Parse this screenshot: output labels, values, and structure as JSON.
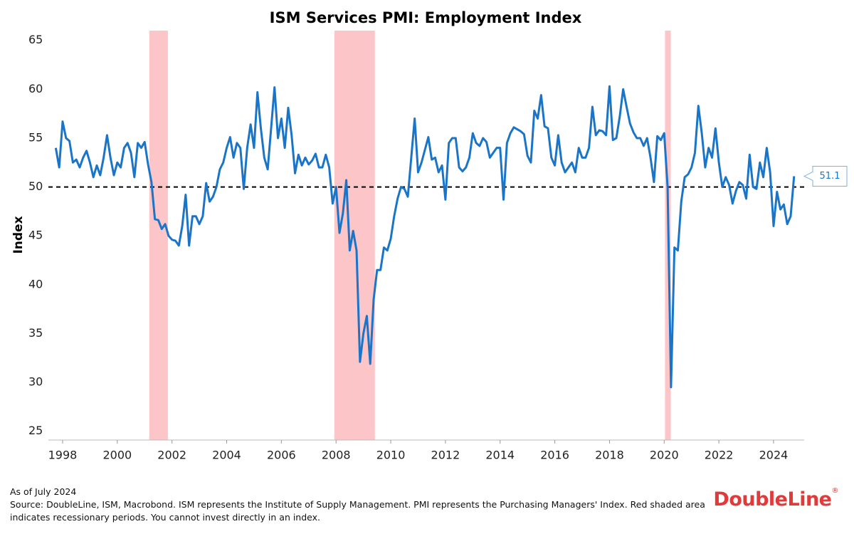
{
  "chart_data": {
    "type": "line",
    "title": "ISM Services PMI: Employment Index",
    "y_label": "Index",
    "color": "#1a75c9",
    "xlim": [
      1997.48,
      2025.12
    ],
    "ylim": [
      24.1,
      66
    ],
    "xticks": [
      1998,
      2000,
      2002,
      2004,
      2006,
      2008,
      2010,
      2012,
      2014,
      2016,
      2018,
      2020,
      2022,
      2024
    ],
    "yticks": [
      25,
      30,
      35,
      40,
      45,
      50,
      55,
      60,
      65
    ],
    "ref_line": 50,
    "recession_color": "#fcc5c8",
    "recessions": [
      [
        2001.17,
        2001.85
      ],
      [
        2007.94,
        2009.42
      ],
      [
        2020.03,
        2020.24
      ]
    ],
    "x": [
      1997.75,
      1997.875,
      1998,
      1998.125,
      1998.25,
      1998.375,
      1998.5,
      1998.625,
      1998.75,
      1998.875,
      1999,
      1999.125,
      1999.25,
      1999.375,
      1999.5,
      1999.625,
      1999.75,
      1999.875,
      2000,
      2000.125,
      2000.25,
      2000.375,
      2000.5,
      2000.625,
      2000.75,
      2000.875,
      2001,
      2001.125,
      2001.25,
      2001.375,
      2001.5,
      2001.625,
      2001.75,
      2001.875,
      2002,
      2002.125,
      2002.25,
      2002.375,
      2002.5,
      2002.625,
      2002.75,
      2002.875,
      2003,
      2003.125,
      2003.25,
      2003.375,
      2003.5,
      2003.625,
      2003.75,
      2003.875,
      2004,
      2004.125,
      2004.25,
      2004.375,
      2004.5,
      2004.625,
      2004.75,
      2004.875,
      2005,
      2005.125,
      2005.25,
      2005.375,
      2005.5,
      2005.625,
      2005.75,
      2005.875,
      2006,
      2006.125,
      2006.25,
      2006.375,
      2006.5,
      2006.625,
      2006.75,
      2006.875,
      2007,
      2007.125,
      2007.25,
      2007.375,
      2007.5,
      2007.625,
      2007.75,
      2007.875,
      2008,
      2008.125,
      2008.25,
      2008.375,
      2008.5,
      2008.625,
      2008.75,
      2008.875,
      2009,
      2009.125,
      2009.25,
      2009.375,
      2009.5,
      2009.625,
      2009.75,
      2009.875,
      2010,
      2010.125,
      2010.25,
      2010.375,
      2010.5,
      2010.625,
      2010.75,
      2010.875,
      2011,
      2011.125,
      2011.25,
      2011.375,
      2011.5,
      2011.625,
      2011.75,
      2011.875,
      2012,
      2012.125,
      2012.25,
      2012.375,
      2012.5,
      2012.625,
      2012.75,
      2012.875,
      2013,
      2013.125,
      2013.25,
      2013.375,
      2013.5,
      2013.625,
      2013.75,
      2013.875,
      2014,
      2014.125,
      2014.25,
      2014.375,
      2014.5,
      2014.625,
      2014.75,
      2014.875,
      2015,
      2015.125,
      2015.25,
      2015.375,
      2015.5,
      2015.625,
      2015.75,
      2015.875,
      2016,
      2016.125,
      2016.25,
      2016.375,
      2016.5,
      2016.625,
      2016.75,
      2016.875,
      2017,
      2017.125,
      2017.25,
      2017.375,
      2017.5,
      2017.625,
      2017.75,
      2017.875,
      2018,
      2018.125,
      2018.25,
      2018.375,
      2018.5,
      2018.625,
      2018.75,
      2018.875,
      2019,
      2019.125,
      2019.25,
      2019.375,
      2019.5,
      2019.625,
      2019.75,
      2019.875,
      2020,
      2020.125,
      2020.25,
      2020.375,
      2020.5,
      2020.625,
      2020.75,
      2020.875,
      2021,
      2021.125,
      2021.25,
      2021.375,
      2021.5,
      2021.625,
      2021.75,
      2021.875,
      2022,
      2022.125,
      2022.25,
      2022.375,
      2022.5,
      2022.625,
      2022.75,
      2022.875,
      2023,
      2023.125,
      2023.25,
      2023.375,
      2023.5,
      2023.625,
      2023.75,
      2023.875,
      2024,
      2024.125,
      2024.25,
      2024.375,
      2024.5,
      2024.625,
      2024.75
    ],
    "values": [
      54,
      52,
      56.7,
      55,
      54.7,
      52.5,
      52.8,
      52,
      53,
      53.7,
      52.5,
      51,
      52.2,
      51.2,
      53,
      55.3,
      53,
      51.2,
      52.5,
      52,
      54,
      54.5,
      53.5,
      51,
      54.5,
      54,
      54.6,
      52.3,
      50.5,
      46.7,
      46.6,
      45.7,
      46.2,
      45,
      44.6,
      44.5,
      44,
      46,
      49.2,
      44,
      47,
      47,
      46.2,
      47,
      50.4,
      48.5,
      49,
      50,
      51.8,
      52.5,
      54,
      55.1,
      53,
      54.5,
      54,
      49.8,
      54,
      56.4,
      54,
      59.7,
      56,
      53,
      51.8,
      56,
      60.2,
      55,
      57,
      54,
      58.1,
      55.3,
      51.4,
      53.3,
      52.2,
      53,
      52.3,
      52.7,
      53.4,
      52,
      52,
      53.3,
      52,
      48.3,
      50,
      45.3,
      47.3,
      50.7,
      43.5,
      45.5,
      43.5,
      32.1,
      35,
      36.8,
      31.9,
      38.5,
      41.5,
      41.5,
      43.8,
      43.5,
      44.7,
      47,
      48.8,
      50,
      49.8,
      49,
      53,
      57,
      51.5,
      52.5,
      53.8,
      55.1,
      52.8,
      53,
      51.5,
      52.2,
      48.7,
      54.5,
      55,
      55,
      52,
      51.6,
      52,
      53,
      55.5,
      54.5,
      54.2,
      55,
      54.6,
      53,
      53.5,
      54,
      54,
      48.7,
      54.5,
      55.5,
      56.1,
      55.9,
      55.7,
      55.4,
      53.2,
      52.5,
      57.8,
      57,
      59.4,
      56.2,
      56,
      53,
      52.2,
      55.3,
      52.5,
      51.5,
      52,
      52.5,
      51.5,
      54,
      53,
      53,
      54,
      58.2,
      55.3,
      55.8,
      55.7,
      55.3,
      60.3,
      54.8,
      55,
      57.2,
      60,
      58.2,
      56.5,
      55.6,
      55,
      55,
      54.2,
      55,
      53,
      50.5,
      55.2,
      54.8,
      55.5,
      50,
      29.5,
      43.8,
      43.5,
      48.5,
      51,
      51.3,
      52,
      53.5,
      58.3,
      55.5,
      52,
      54,
      53,
      56,
      52.5,
      50,
      51,
      50.2,
      48.3,
      49.6,
      50.5,
      50.2,
      48.8,
      53.3,
      50,
      49.8,
      52.5,
      51,
      54,
      51.5,
      46,
      49.5,
      47.7,
      48.2,
      46.2,
      47,
      51.1
    ],
    "footnote": "As of July 2024",
    "source": "Source: DoubleLine, ISM, Macrobond. ISM represents the Institute of Supply Management. PMI represents the Purchasing Managers' Index. Red shaded area indicates recessionary periods. You cannot invest directly in an index.",
    "logo": "DoubleLine",
    "logo_mark": "®"
  }
}
